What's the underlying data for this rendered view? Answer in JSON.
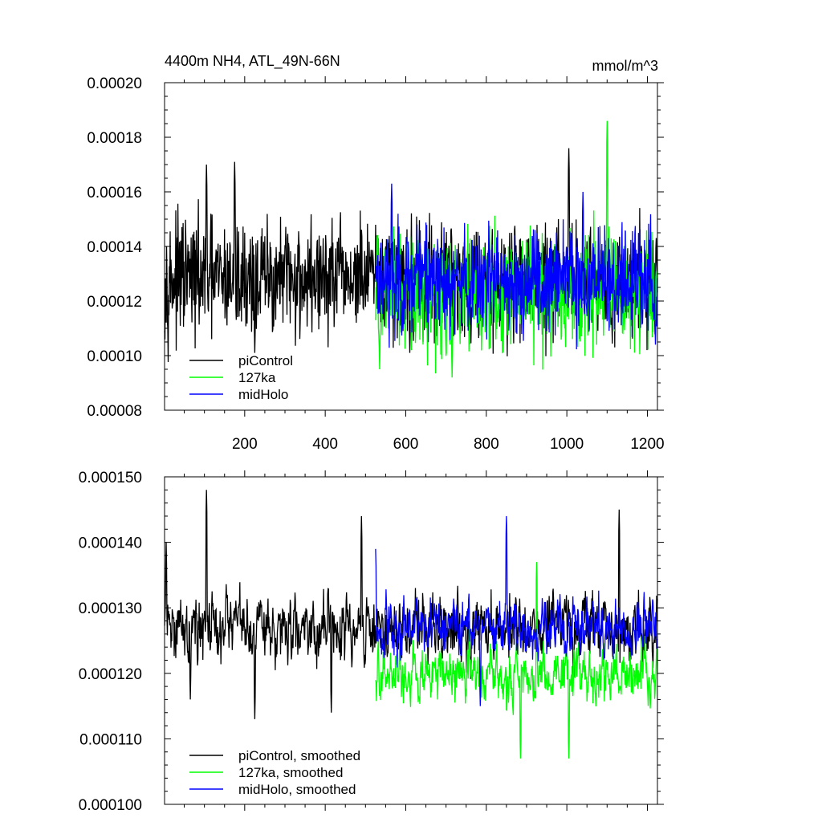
{
  "chart_data": [
    {
      "type": "line",
      "title": "4400m NH4, ATL_49N-66N",
      "units": "mmol/m^3",
      "xlim": [
        1,
        1225
      ],
      "ylim": [
        8e-05,
        0.0002
      ],
      "x_ticks": [
        200,
        400,
        600,
        800,
        1000,
        1200
      ],
      "x_tick_labels": [
        "200",
        "400",
        "600",
        "800",
        "1000",
        "1200"
      ],
      "y_ticks": [
        8e-05,
        0.0001,
        0.00012,
        0.00014,
        0.00016,
        0.00018,
        0.0002
      ],
      "y_tick_labels": [
        "0.00008",
        "0.00010",
        "0.00012",
        "0.00014",
        "0.00016",
        "0.00018",
        "0.00020"
      ],
      "legend_position": "bottom-left",
      "series": [
        {
          "name": "piControl",
          "color": "#000000",
          "x_range": [
            1,
            1225
          ],
          "mean": 0.000128,
          "spread": 1.3e-05,
          "peaks": [
            [
              105,
              0.00017
            ],
            [
              175,
              0.000171
            ],
            [
              1005,
              0.000176
            ]
          ],
          "troughs": [
            [
              225,
              0.000101
            ],
            [
              610,
              0.000101
            ]
          ]
        },
        {
          "name": "127ka",
          "color": "#00ff00",
          "x_range": [
            525,
            1225
          ],
          "mean": 0.000123,
          "spread": 1.3e-05,
          "peaks": [
            [
              1100,
              0.000186
            ]
          ],
          "troughs": [
            [
              535,
              9.5e-05
            ],
            [
              715,
              9.2e-05
            ]
          ]
        },
        {
          "name": "midHolo",
          "color": "#0000ff",
          "x_range": [
            525,
            1225
          ],
          "mean": 0.000128,
          "spread": 1.2e-05,
          "peaks": [
            [
              565,
              0.000163
            ],
            [
              1040,
              0.00016
            ]
          ],
          "troughs": [
            [
              1220,
              0.000104
            ]
          ]
        }
      ]
    },
    {
      "type": "line",
      "xlim": [
        1,
        1225
      ],
      "ylim": [
        0.0001,
        0.00015
      ],
      "x_ticks": [
        200,
        400,
        600,
        800,
        1000,
        1200
      ],
      "y_ticks": [
        0.0001,
        0.00011,
        0.00012,
        0.00013,
        0.00014,
        0.00015
      ],
      "y_tick_labels": [
        "0.000100",
        "0.000110",
        "0.000120",
        "0.000130",
        "0.000140",
        "0.000150"
      ],
      "legend_position": "bottom-left",
      "series": [
        {
          "name": "piControl, smoothed",
          "color": "#000000",
          "x_range": [
            1,
            1225
          ],
          "mean": 0.000127,
          "spread": 5.5e-06,
          "peaks": [
            [
              5,
              0.00014
            ],
            [
              105,
              0.000148
            ],
            [
              490,
              0.000144
            ],
            [
              1130,
              0.000145
            ]
          ],
          "troughs": [
            [
              65,
              0.000116
            ],
            [
              225,
              0.000113
            ],
            [
              415,
              0.000114
            ]
          ]
        },
        {
          "name": "127ka, smoothed",
          "color": "#00ff00",
          "x_range": [
            525,
            1225
          ],
          "mean": 0.00012,
          "spread": 4.5e-06,
          "peaks": [
            [
              925,
              0.000137
            ]
          ],
          "troughs": [
            [
              885,
              0.000107
            ],
            [
              1005,
              0.000107
            ]
          ]
        },
        {
          "name": "midHolo, smoothed",
          "color": "#0000ff",
          "x_range": [
            525,
            1225
          ],
          "mean": 0.000127,
          "spread": 4.5e-06,
          "peaks": [
            [
              525,
              0.000139
            ],
            [
              850,
              0.000144
            ]
          ],
          "troughs": [
            [
              785,
              0.000115
            ]
          ]
        }
      ]
    }
  ]
}
